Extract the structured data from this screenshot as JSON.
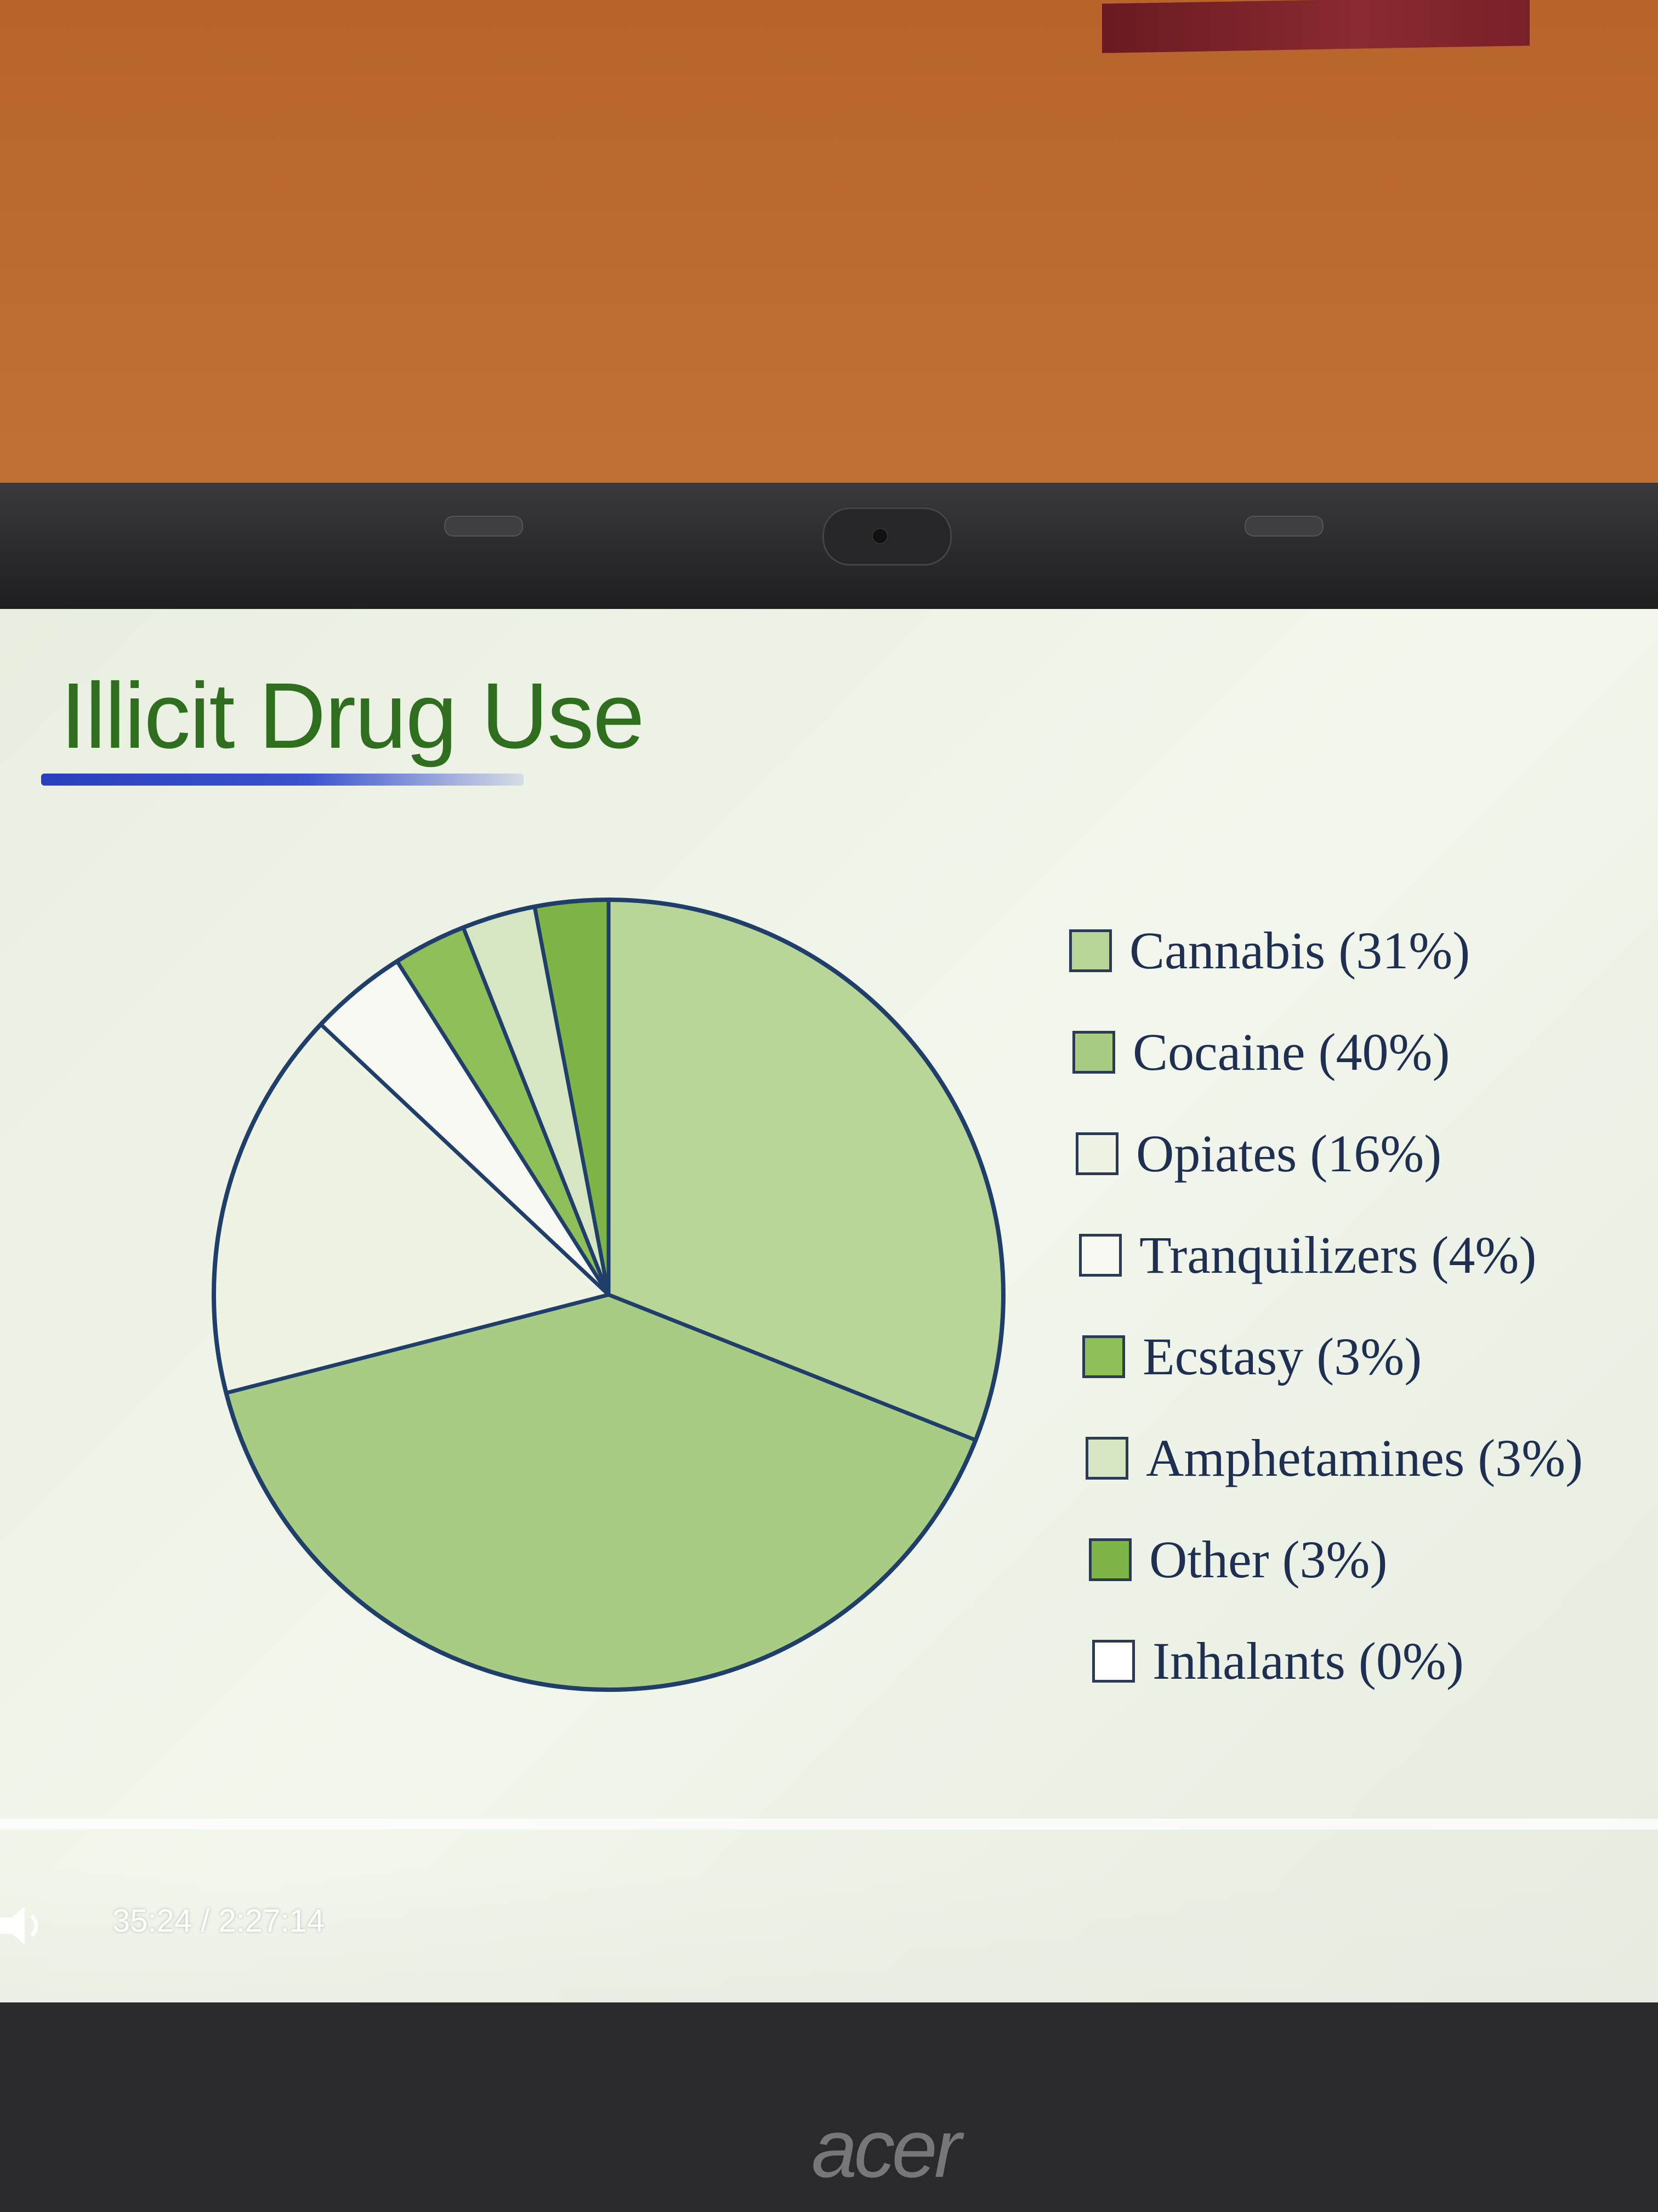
{
  "slide": {
    "title": "Illicit Drug Use"
  },
  "chart_data": {
    "type": "pie",
    "title": "Illicit Drug Use",
    "start_angle_deg": 0,
    "direction": "clockwise",
    "slices": [
      {
        "label": "Cannabis (31%)",
        "value": 31,
        "color": "#b9d597"
      },
      {
        "label": "Cocaine (40%)",
        "value": 40,
        "color": "#a9cc85"
      },
      {
        "label": "Opiates (16%)",
        "value": 16,
        "color": "#eef3e4"
      },
      {
        "label": "Tranquilizers (4%)",
        "value": 4,
        "color": "#f7f9f2"
      },
      {
        "label": "Ecstasy (3%)",
        "value": 3,
        "color": "#8fbf58"
      },
      {
        "label": "Amphetamines (3%)",
        "value": 3,
        "color": "#d6e6c2"
      },
      {
        "label": "Other (3%)",
        "value": 3,
        "color": "#7fb447"
      },
      {
        "label": "Inhalants (0%)",
        "value": 0,
        "color": "#ffffff"
      }
    ],
    "legend_position": "right",
    "outline_color": "#1f3f6a"
  },
  "player": {
    "time": "35:24 / 2:27:14",
    "volume_icon": "speaker-icon"
  },
  "device": {
    "brand": "acer"
  }
}
